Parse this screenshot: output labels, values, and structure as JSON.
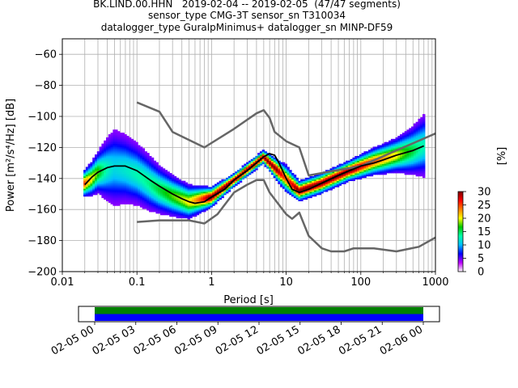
{
  "title": {
    "line1": "BK.LIND.00.HHN   2019-02-04 -- 2019-02-05  (47/47 segments)",
    "line2": "sensor_type CMG-3T sensor_sn T310034",
    "line3": "datalogger_type GuralpMinimus+ datalogger_sn MINP-DF59"
  },
  "chart_data": [
    {
      "type": "heatmap",
      "title": "BK.LIND.00.HHN   2019-02-04 -- 2019-02-05  (47/47 segments)",
      "xlabel": "Period [s]",
      "ylabel": "Power [m²/s⁴/Hz] [dB]",
      "xscale": "log",
      "xlim": [
        0.01,
        1000
      ],
      "ylim": [
        -200,
        -50
      ],
      "x_ticks": [
        {
          "v": 0.01,
          "label": "0.01"
        },
        {
          "v": 0.1,
          "label": "0.1"
        },
        {
          "v": 1,
          "label": "1"
        },
        {
          "v": 10,
          "label": "10"
        },
        {
          "v": 100,
          "label": "100"
        },
        {
          "v": 1000,
          "label": "1000"
        }
      ],
      "y_ticks": [
        {
          "v": -60,
          "label": "−60"
        },
        {
          "v": -80,
          "label": "−80"
        },
        {
          "v": -100,
          "label": "−100"
        },
        {
          "v": -120,
          "label": "−120"
        },
        {
          "v": -140,
          "label": "−140"
        },
        {
          "v": -160,
          "label": "−160"
        },
        {
          "v": -180,
          "label": "−180"
        },
        {
          "v": -200,
          "label": "−200"
        }
      ],
      "grid": true,
      "colorbar": {
        "label": "[%]",
        "range": [
          0,
          30
        ],
        "ticks": [
          {
            "v": 0,
            "label": "0"
          },
          {
            "v": 5,
            "label": "5"
          },
          {
            "v": 10,
            "label": "10"
          },
          {
            "v": 15,
            "label": "15"
          },
          {
            "v": 20,
            "label": "20"
          },
          {
            "v": 25,
            "label": "25"
          },
          {
            "v": 30,
            "label": "30"
          }
        ],
        "colors": [
          "#ffffff",
          "#bf00ff",
          "#0000ff",
          "#00bfff",
          "#00ffaa",
          "#00c800",
          "#ffff00",
          "#ff8000",
          "#ff0000",
          "#7f0000"
        ]
      },
      "mode_curve": {
        "name": "mode",
        "color": "#000000",
        "x": [
          0.02,
          0.025,
          0.03,
          0.04,
          0.05,
          0.07,
          0.1,
          0.15,
          0.2,
          0.3,
          0.4,
          0.5,
          0.6,
          0.8,
          1,
          1.5,
          2,
          3,
          4,
          5,
          6,
          7,
          8,
          10,
          12,
          15,
          20,
          30,
          50,
          70,
          100,
          150,
          200,
          300,
          500,
          700
        ],
        "y": [
          -144,
          -139,
          -136,
          -133,
          -132,
          -132,
          -135,
          -141,
          -145,
          -150,
          -153,
          -155,
          -156,
          -155,
          -152,
          -147,
          -141,
          -135,
          -130,
          -126,
          -124,
          -125,
          -130,
          -140,
          -147,
          -149,
          -147,
          -143,
          -138,
          -135,
          -132,
          -130,
          -128,
          -125,
          -122,
          -119
        ]
      },
      "density": {
        "points": [
          {
            "x": 0.02,
            "y": -143,
            "s": 4
          },
          {
            "x": 0.025,
            "y": -140,
            "s": 5
          },
          {
            "x": 0.03,
            "y": -136,
            "s": 6
          },
          {
            "x": 0.04,
            "y": -134,
            "s": 9
          },
          {
            "x": 0.05,
            "y": -133,
            "s": 11
          },
          {
            "x": 0.07,
            "y": -134,
            "s": 10
          },
          {
            "x": 0.1,
            "y": -137,
            "s": 9
          },
          {
            "x": 0.15,
            "y": -143,
            "s": 8
          },
          {
            "x": 0.2,
            "y": -147,
            "s": 7
          },
          {
            "x": 0.3,
            "y": -151,
            "s": 6
          },
          {
            "x": 0.5,
            "y": -155,
            "s": 5
          },
          {
            "x": 1,
            "y": -152,
            "s": 3
          },
          {
            "x": 2,
            "y": -141,
            "s": 2
          },
          {
            "x": 5,
            "y": -126,
            "s": 2
          },
          {
            "x": 10,
            "y": -140,
            "s": 4
          },
          {
            "x": 15,
            "y": -148,
            "s": 3
          },
          {
            "x": 30,
            "y": -143,
            "s": 3
          },
          {
            "x": 70,
            "y": -135,
            "s": 3
          },
          {
            "x": 150,
            "y": -129,
            "s": 4
          },
          {
            "x": 300,
            "y": -125,
            "s": 5
          },
          {
            "x": 500,
            "y": -122,
            "s": 7
          },
          {
            "x": 700,
            "y": -119,
            "s": 9
          }
        ]
      },
      "series": [
        {
          "color": "#666666",
          "x": [
            0.1,
            0.2,
            0.3,
            0.8,
            2,
            4,
            5,
            6,
            7,
            10,
            15,
            20,
            100,
            1000
          ],
          "y": [
            -91,
            -97,
            -110,
            -120,
            -108,
            -98,
            -96,
            -101,
            -110,
            -116,
            -120,
            -138,
            -132,
            -111
          ]
        },
        {
          "color": "#666666",
          "x": [
            0.1,
            0.2,
            0.5,
            0.8,
            1.2,
            2,
            3,
            4,
            5,
            6,
            8,
            10,
            12,
            15,
            20,
            30,
            40,
            60,
            80,
            100,
            150,
            300,
            600,
            1000
          ],
          "y": [
            -168,
            -167,
            -167,
            -169,
            -163,
            -149,
            -144,
            -141,
            -141,
            -149,
            -157,
            -163,
            -166,
            -162,
            -177,
            -185,
            -187,
            -187,
            -185,
            -185,
            -185,
            -187,
            -184,
            -178
          ]
        }
      ]
    },
    {
      "type": "timeline",
      "x_tick_labels": [
        "02-05 00",
        "02-05 03",
        "02-05 06",
        "02-05 09",
        "02-05 12",
        "02-05 15",
        "02-05 18",
        "02-05 21",
        "02-06 00"
      ],
      "bars": [
        {
          "color": "#008000",
          "start": "02-05 00",
          "end": "02-06 00"
        },
        {
          "color": "#0000ff",
          "start": "02-05 00",
          "end": "02-06 00"
        }
      ]
    }
  ]
}
